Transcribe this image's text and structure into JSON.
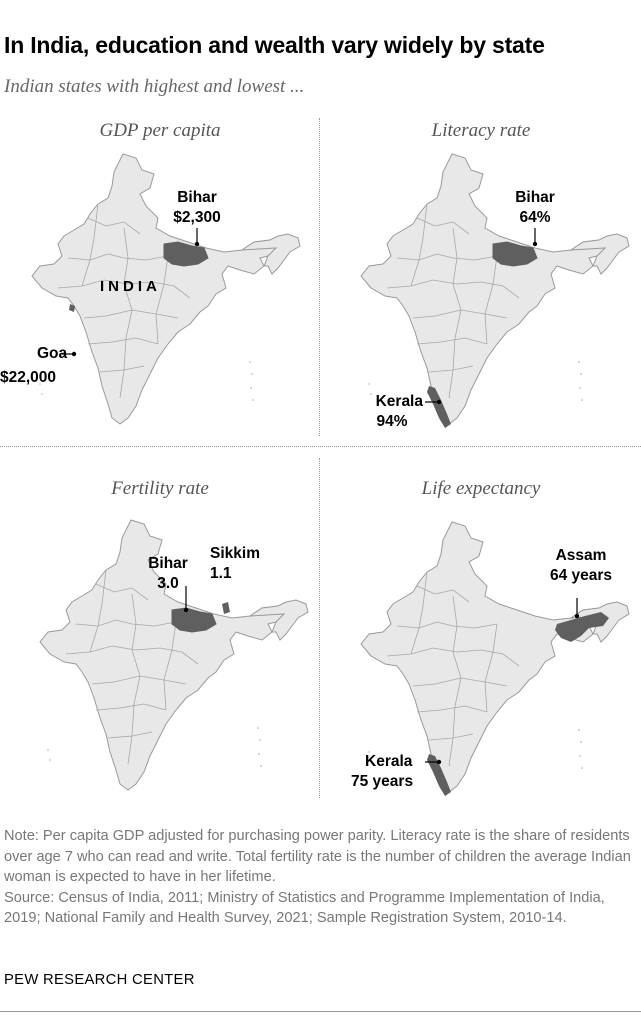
{
  "title": "In India, education and wealth vary widely by state",
  "subtitle": "Indian states with highest and lowest ...",
  "country_label": "INDIA",
  "colors": {
    "map_fill": "#e8e8e8",
    "map_stroke": "#9a9a9a",
    "highlight": "#5f5f5f",
    "text_muted": "#777777"
  },
  "panels": {
    "gdp": {
      "title": "GDP per capita",
      "labels": [
        {
          "state": "Bihar",
          "value": "$2,300"
        },
        {
          "state": "Goa",
          "value": "$22,000"
        }
      ]
    },
    "literacy": {
      "title": "Literacy rate",
      "labels": [
        {
          "state": "Bihar",
          "value": "64%"
        },
        {
          "state": "Kerala",
          "value": "94%"
        }
      ]
    },
    "fertility": {
      "title": "Fertility rate",
      "labels": [
        {
          "state": "Bihar",
          "value": "3.0"
        },
        {
          "state": "Sikkim",
          "value": "1.1"
        }
      ]
    },
    "life": {
      "title": "Life expectancy",
      "labels": [
        {
          "state": "Assam",
          "value": "64 years"
        },
        {
          "state": "Kerala",
          "value": "75 years"
        }
      ]
    }
  },
  "note": "Note: Per capita GDP adjusted for purchasing power parity. Literacy rate is the share of residents over age 7 who can read and write. Total fertility rate is the number of children the average Indian woman is expected to have in her lifetime.",
  "source": "Source: Census of India, 2011;  Ministry of Statistics and Programme Implementation of India, 2019; National Family and Health Survey, 2021; Sample Registration System, 2010-14.",
  "org": "PEW RESEARCH CENTER"
}
